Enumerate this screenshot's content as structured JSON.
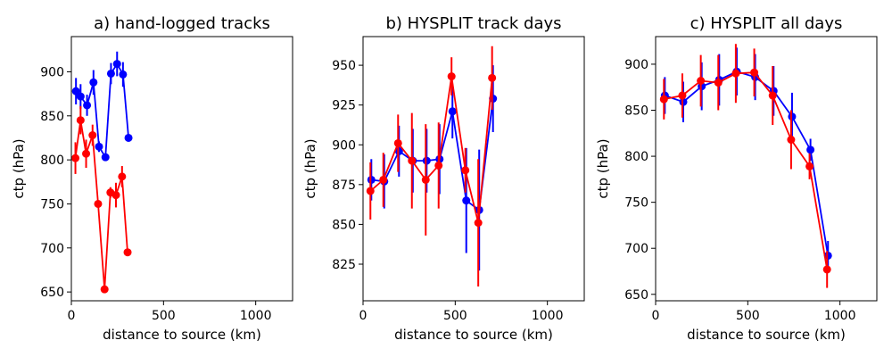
{
  "chart_data": [
    {
      "type": "line",
      "title": "a) hand-logged tracks",
      "xlabel": "distance to source (km)",
      "ylabel": "ctp (hPa)",
      "xlim": [
        0,
        1200
      ],
      "ylim": [
        640,
        940
      ],
      "xticks": [
        0,
        500,
        1000
      ],
      "yticks": [
        650,
        700,
        750,
        800,
        850,
        900
      ],
      "series": [
        {
          "name": "blue",
          "color": "#0000ff",
          "x": [
            25,
            50,
            85,
            120,
            150,
            185,
            215,
            248,
            280,
            310
          ],
          "y": [
            878,
            872,
            862,
            888,
            815,
            803,
            898,
            909,
            897,
            825
          ],
          "err": [
            15,
            14,
            12,
            14,
            6,
            4,
            12,
            14,
            14,
            4
          ]
        },
        {
          "name": "red",
          "color": "#ff0000",
          "x": [
            22,
            50,
            80,
            115,
            145,
            180,
            212,
            242,
            275,
            305
          ],
          "y": [
            802,
            845,
            807,
            828,
            750,
            653,
            763,
            760,
            781,
            695
          ],
          "err": [
            18,
            16,
            16,
            12,
            4,
            3,
            6,
            14,
            12,
            3
          ]
        }
      ]
    },
    {
      "type": "line",
      "title": "b) HYSPLIT track days",
      "xlabel": "distance to source (km)",
      "ylabel": "ctp (hPa)",
      "xlim": [
        0,
        1200
      ],
      "ylim": [
        802,
        968
      ],
      "xticks": [
        0,
        500,
        1000
      ],
      "yticks": [
        825,
        850,
        875,
        900,
        925,
        950
      ],
      "series": [
        {
          "name": "blue",
          "color": "#0000ff",
          "x": [
            45,
            115,
            195,
            270,
            345,
            415,
            485,
            560,
            630,
            705
          ],
          "y": [
            878,
            877,
            896,
            890,
            890,
            891,
            921,
            865,
            859,
            929
          ],
          "err": [
            13,
            17,
            16,
            20,
            20,
            22,
            17,
            33,
            38,
            21
          ]
        },
        {
          "name": "red",
          "color": "#ff0000",
          "x": [
            40,
            110,
            190,
            265,
            340,
            410,
            480,
            555,
            625,
            700
          ],
          "y": [
            871,
            878,
            901,
            890,
            878,
            887,
            943,
            884,
            851,
            942
          ],
          "err": [
            18,
            17,
            18,
            30,
            35,
            27,
            12,
            14,
            40,
            20
          ]
        }
      ]
    },
    {
      "type": "line",
      "title": "c) HYSPLIT all days",
      "xlabel": "distance to source (km)",
      "ylabel": "ctp (hPa)",
      "xlim": [
        0,
        1200
      ],
      "ylim": [
        643,
        930
      ],
      "xticks": [
        0,
        500,
        1000
      ],
      "yticks": [
        650,
        700,
        750,
        800,
        850,
        900
      ],
      "series": [
        {
          "name": "blue",
          "color": "#0000ff",
          "x": [
            50,
            150,
            250,
            345,
            440,
            540,
            640,
            740,
            840,
            935
          ],
          "y": [
            866,
            859,
            876,
            883,
            892,
            886,
            871,
            843,
            807,
            692
          ],
          "err": [
            20,
            22,
            26,
            28,
            26,
            25,
            27,
            26,
            12,
            16
          ]
        },
        {
          "name": "red",
          "color": "#ff0000",
          "x": [
            45,
            145,
            245,
            340,
            435,
            535,
            635,
            735,
            835,
            930
          ],
          "y": [
            862,
            866,
            882,
            880,
            890,
            891,
            866,
            818,
            789,
            677
          ],
          "err": [
            22,
            24,
            28,
            30,
            32,
            26,
            32,
            32,
            14,
            20
          ]
        }
      ]
    }
  ]
}
